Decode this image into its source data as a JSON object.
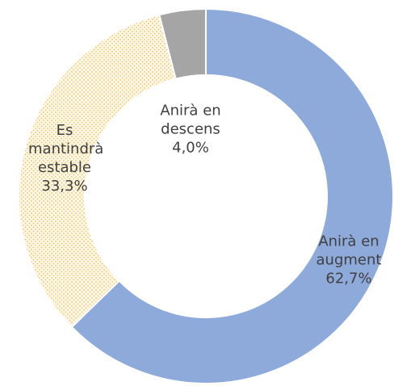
{
  "chart_data": {
    "type": "donut",
    "categories": [
      "Anirà en augment",
      "Es mantindrà estable",
      "Anirà en descens"
    ],
    "values": [
      62.7,
      33.3,
      4.0
    ],
    "value_labels": [
      "62,7%",
      "33,3%",
      "4,0%"
    ],
    "colors": [
      "#8eaadb",
      "#fbe8b4",
      "#a5a5a5"
    ]
  }
}
